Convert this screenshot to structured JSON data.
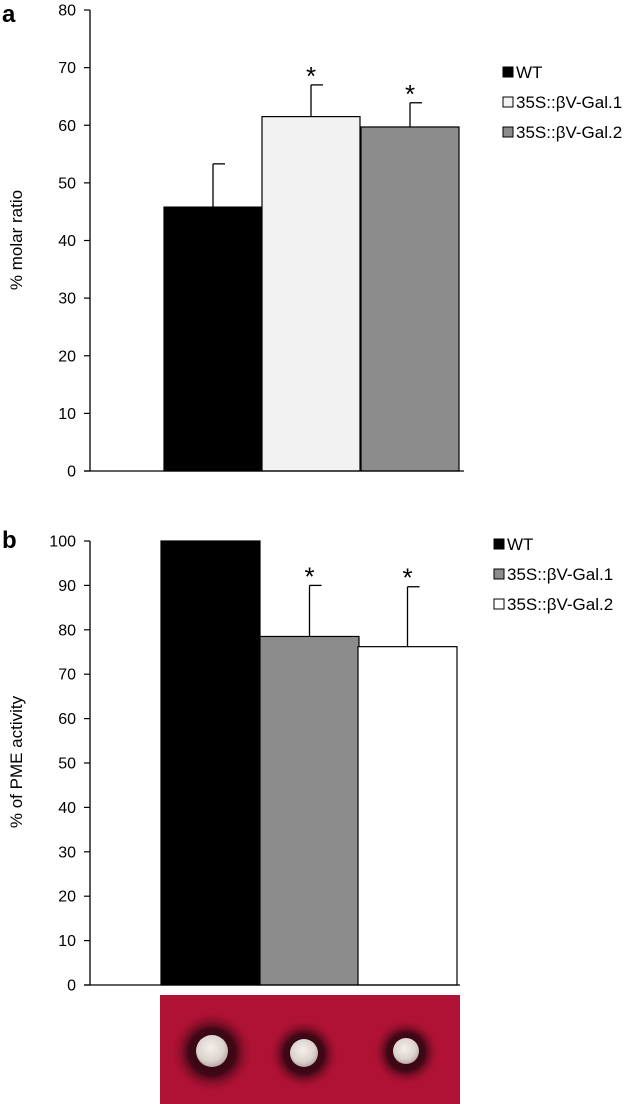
{
  "chart_data": [
    {
      "type": "bar",
      "panel_label": "a",
      "ylabel": "% molar ratio",
      "ylim": [
        0,
        80
      ],
      "yticks": [
        0,
        10,
        20,
        30,
        40,
        50,
        60,
        70,
        80
      ],
      "categories": [
        "WT",
        "35S::βV-Gal.1",
        "35S::βV-Gal.2"
      ],
      "values": [
        45.8,
        61.5,
        59.7
      ],
      "errors": [
        7.5,
        5.5,
        4.2
      ],
      "significance": [
        "",
        "*",
        "*"
      ],
      "colors": [
        "#000000",
        "#f2f2f2",
        "#8c8c8c"
      ],
      "legend": [
        "WT",
        "35S::βV-Gal.1",
        "35S::βV-Gal.2"
      ],
      "legend_position": "right",
      "grid": false
    },
    {
      "type": "bar",
      "panel_label": "b",
      "ylabel": "% of PME activity",
      "ylim": [
        0,
        100
      ],
      "yticks": [
        0,
        10,
        20,
        30,
        40,
        50,
        60,
        70,
        80,
        90,
        100
      ],
      "categories": [
        "WT",
        "35S::βV-Gal.1",
        "35S::βV-Gal.2"
      ],
      "values": [
        100,
        78.5,
        76.2
      ],
      "errors": [
        0,
        11.5,
        13.5
      ],
      "significance": [
        "",
        "*",
        "*"
      ],
      "colors": [
        "#000000",
        "#8c8c8c",
        "#ffffff"
      ],
      "legend": [
        "WT",
        "35S::βV-Gal.1",
        "35S::βV-Gal.2"
      ],
      "legend_position": "right",
      "grid": false
    }
  ],
  "colors": {
    "gel_background": "#b01235",
    "gel_halo": "#3a0714",
    "gel_well": "#e6ddd9"
  }
}
